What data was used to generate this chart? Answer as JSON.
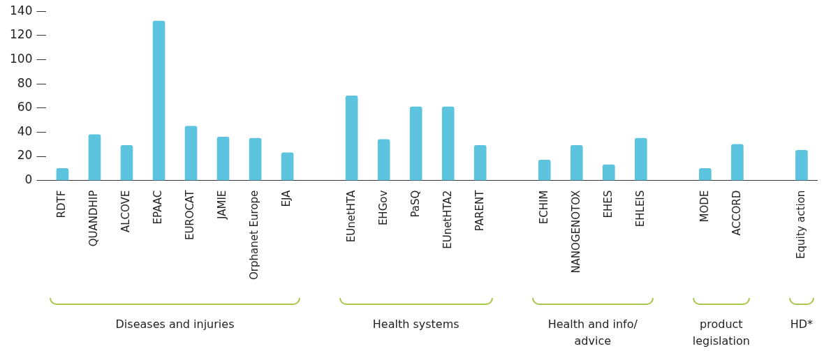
{
  "chart_data": {
    "type": "bar",
    "categories": [
      "RDTF",
      "QUANDHIP",
      "ALCOVE",
      "EPAAC",
      "EUROCAT",
      "JAMIE",
      "Orphanet Europe",
      "EJA",
      null,
      "EUnetHTA",
      "EHGov",
      "PaSQ",
      "EUnetHTA2",
      "PARENT",
      null,
      "ECHIM",
      "NANOGENOTOX",
      "EHES",
      "EHLEIS",
      null,
      "MODE",
      "ACCORD",
      null,
      "Equity action"
    ],
    "values": [
      10,
      38,
      29,
      132,
      45,
      36,
      35,
      23,
      null,
      70,
      34,
      61,
      61,
      29,
      null,
      17,
      29,
      13,
      35,
      null,
      10,
      30,
      null,
      25
    ],
    "color": "#5cc4de",
    "ylim": [
      0,
      140
    ],
    "yticks": [
      0,
      20,
      40,
      60,
      80,
      100,
      120,
      140
    ],
    "grid": false,
    "legend": false,
    "annotations": [
      "Diseases and injuries",
      "Health systems",
      "Health and info/ advice",
      "product legislation",
      "HD*"
    ]
  }
}
